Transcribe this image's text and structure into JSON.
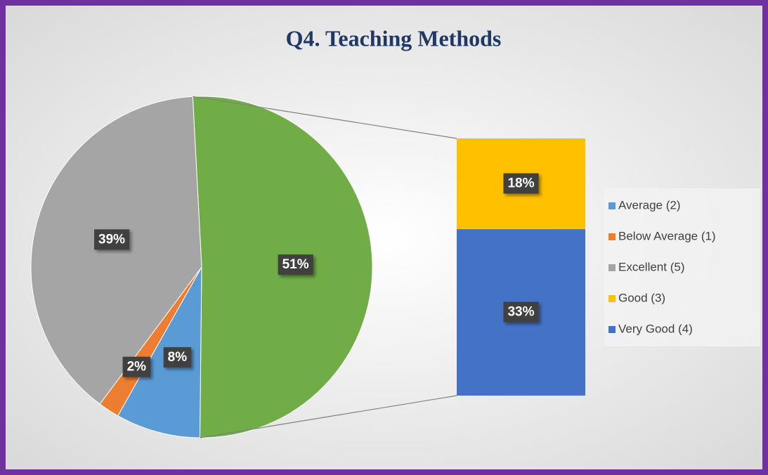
{
  "chart_data": {
    "type": "bar-of-pie",
    "title": "Q4. Teaching Methods",
    "slices": [
      {
        "name": "Average (2)",
        "color": "#5b9bd5",
        "value": 8,
        "label": "8%"
      },
      {
        "name": "Below Average (1)",
        "color": "#ed7d31",
        "value": 2,
        "label": "2%"
      },
      {
        "name": "Excellent (5)",
        "color": "#a5a5a5",
        "value": 39,
        "label": "39%"
      }
    ],
    "combined_slice": {
      "color": "#70ad47",
      "value": 51,
      "label": "51%"
    },
    "bar_items": [
      {
        "name": "Good (3)",
        "color": "#ffc000",
        "value": 18,
        "label": "18%"
      },
      {
        "name": "Very Good (4)",
        "color": "#4472c4",
        "value": 33,
        "label": "33%"
      }
    ],
    "legend": "right"
  }
}
